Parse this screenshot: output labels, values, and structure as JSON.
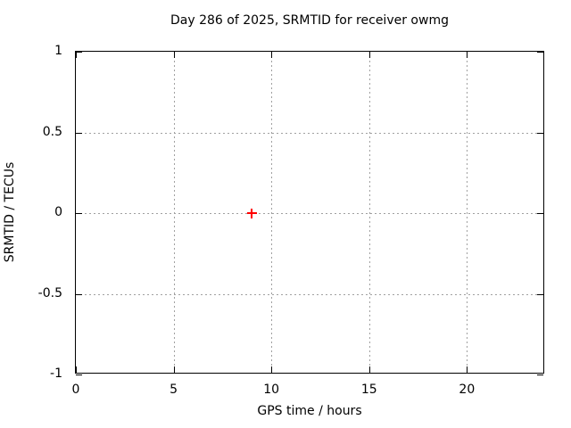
{
  "chart_data": {
    "type": "scatter",
    "title": "Day 286 of 2025, SRMTID for receiver owmg",
    "xlabel": "GPS time / hours",
    "ylabel": "SRMTID / TECUs",
    "xlim": [
      0,
      24
    ],
    "ylim": [
      -1,
      1
    ],
    "xticks": {
      "values": [
        0,
        5,
        10,
        15,
        20
      ],
      "labels": [
        "0",
        "5",
        "10",
        "15",
        "20"
      ]
    },
    "yticks": {
      "values": [
        1,
        0.5,
        0,
        -0.5,
        -1
      ],
      "labels": [
        "1",
        "0.5",
        "0",
        "-0.5",
        "-1"
      ]
    },
    "grid": true,
    "legend": "none",
    "series": [
      {
        "marker": "plus",
        "color": "#ff0000",
        "points": [
          {
            "x": 9,
            "y": 0
          }
        ]
      }
    ],
    "colors": {
      "background": "#ffffff",
      "text": "#000000",
      "axis": "#000000",
      "grid": "#a0a0a0"
    }
  }
}
